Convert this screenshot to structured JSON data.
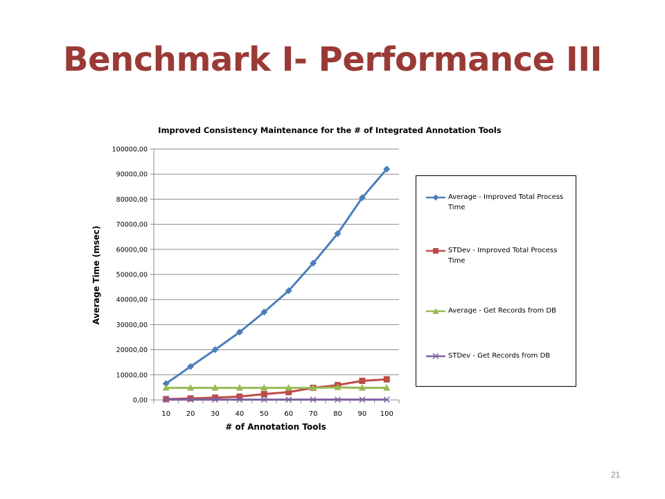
{
  "slide": {
    "title": "Benchmark I- Performance III",
    "page_number": "21"
  },
  "chart_data": {
    "type": "line",
    "title": "Improved Consistency Maintenance for the # of Integrated Annotation Tools",
    "xlabel": "# of Annotation Tools",
    "ylabel": "Average Time (msec)",
    "x": [
      10,
      20,
      30,
      40,
      50,
      60,
      70,
      80,
      90,
      100
    ],
    "ylim": [
      0,
      100000
    ],
    "y_ticks": [
      "0,00",
      "10000,00",
      "20000,00",
      "30000,00",
      "40000,00",
      "50000,00",
      "60000,00",
      "70000,00",
      "80000,00",
      "90000,00",
      "100000,00"
    ],
    "grid": "horizontal",
    "legend_position": "right",
    "series": [
      {
        "name": "Average - Improved Total Process Time",
        "color": "#4a7ebb",
        "marker": "diamond",
        "values": [
          6500,
          13300,
          20000,
          27000,
          35000,
          43500,
          54500,
          66300,
          80600,
          92000
        ]
      },
      {
        "name": "STDev - Improved Total Process Time",
        "color": "#be4b48",
        "marker": "square",
        "values": [
          300,
          600,
          900,
          1300,
          2300,
          3100,
          4800,
          5900,
          7600,
          8200
        ]
      },
      {
        "name": "Average - Get Records from DB",
        "color": "#98b954",
        "marker": "triangle",
        "values": [
          4800,
          4800,
          4800,
          4800,
          4800,
          4800,
          4800,
          5000,
          4800,
          4800
        ]
      },
      {
        "name": "STDev - Get Records from DB",
        "color": "#7d60a0",
        "marker": "x",
        "values": [
          100,
          100,
          100,
          100,
          100,
          100,
          100,
          100,
          100,
          100
        ]
      }
    ]
  }
}
